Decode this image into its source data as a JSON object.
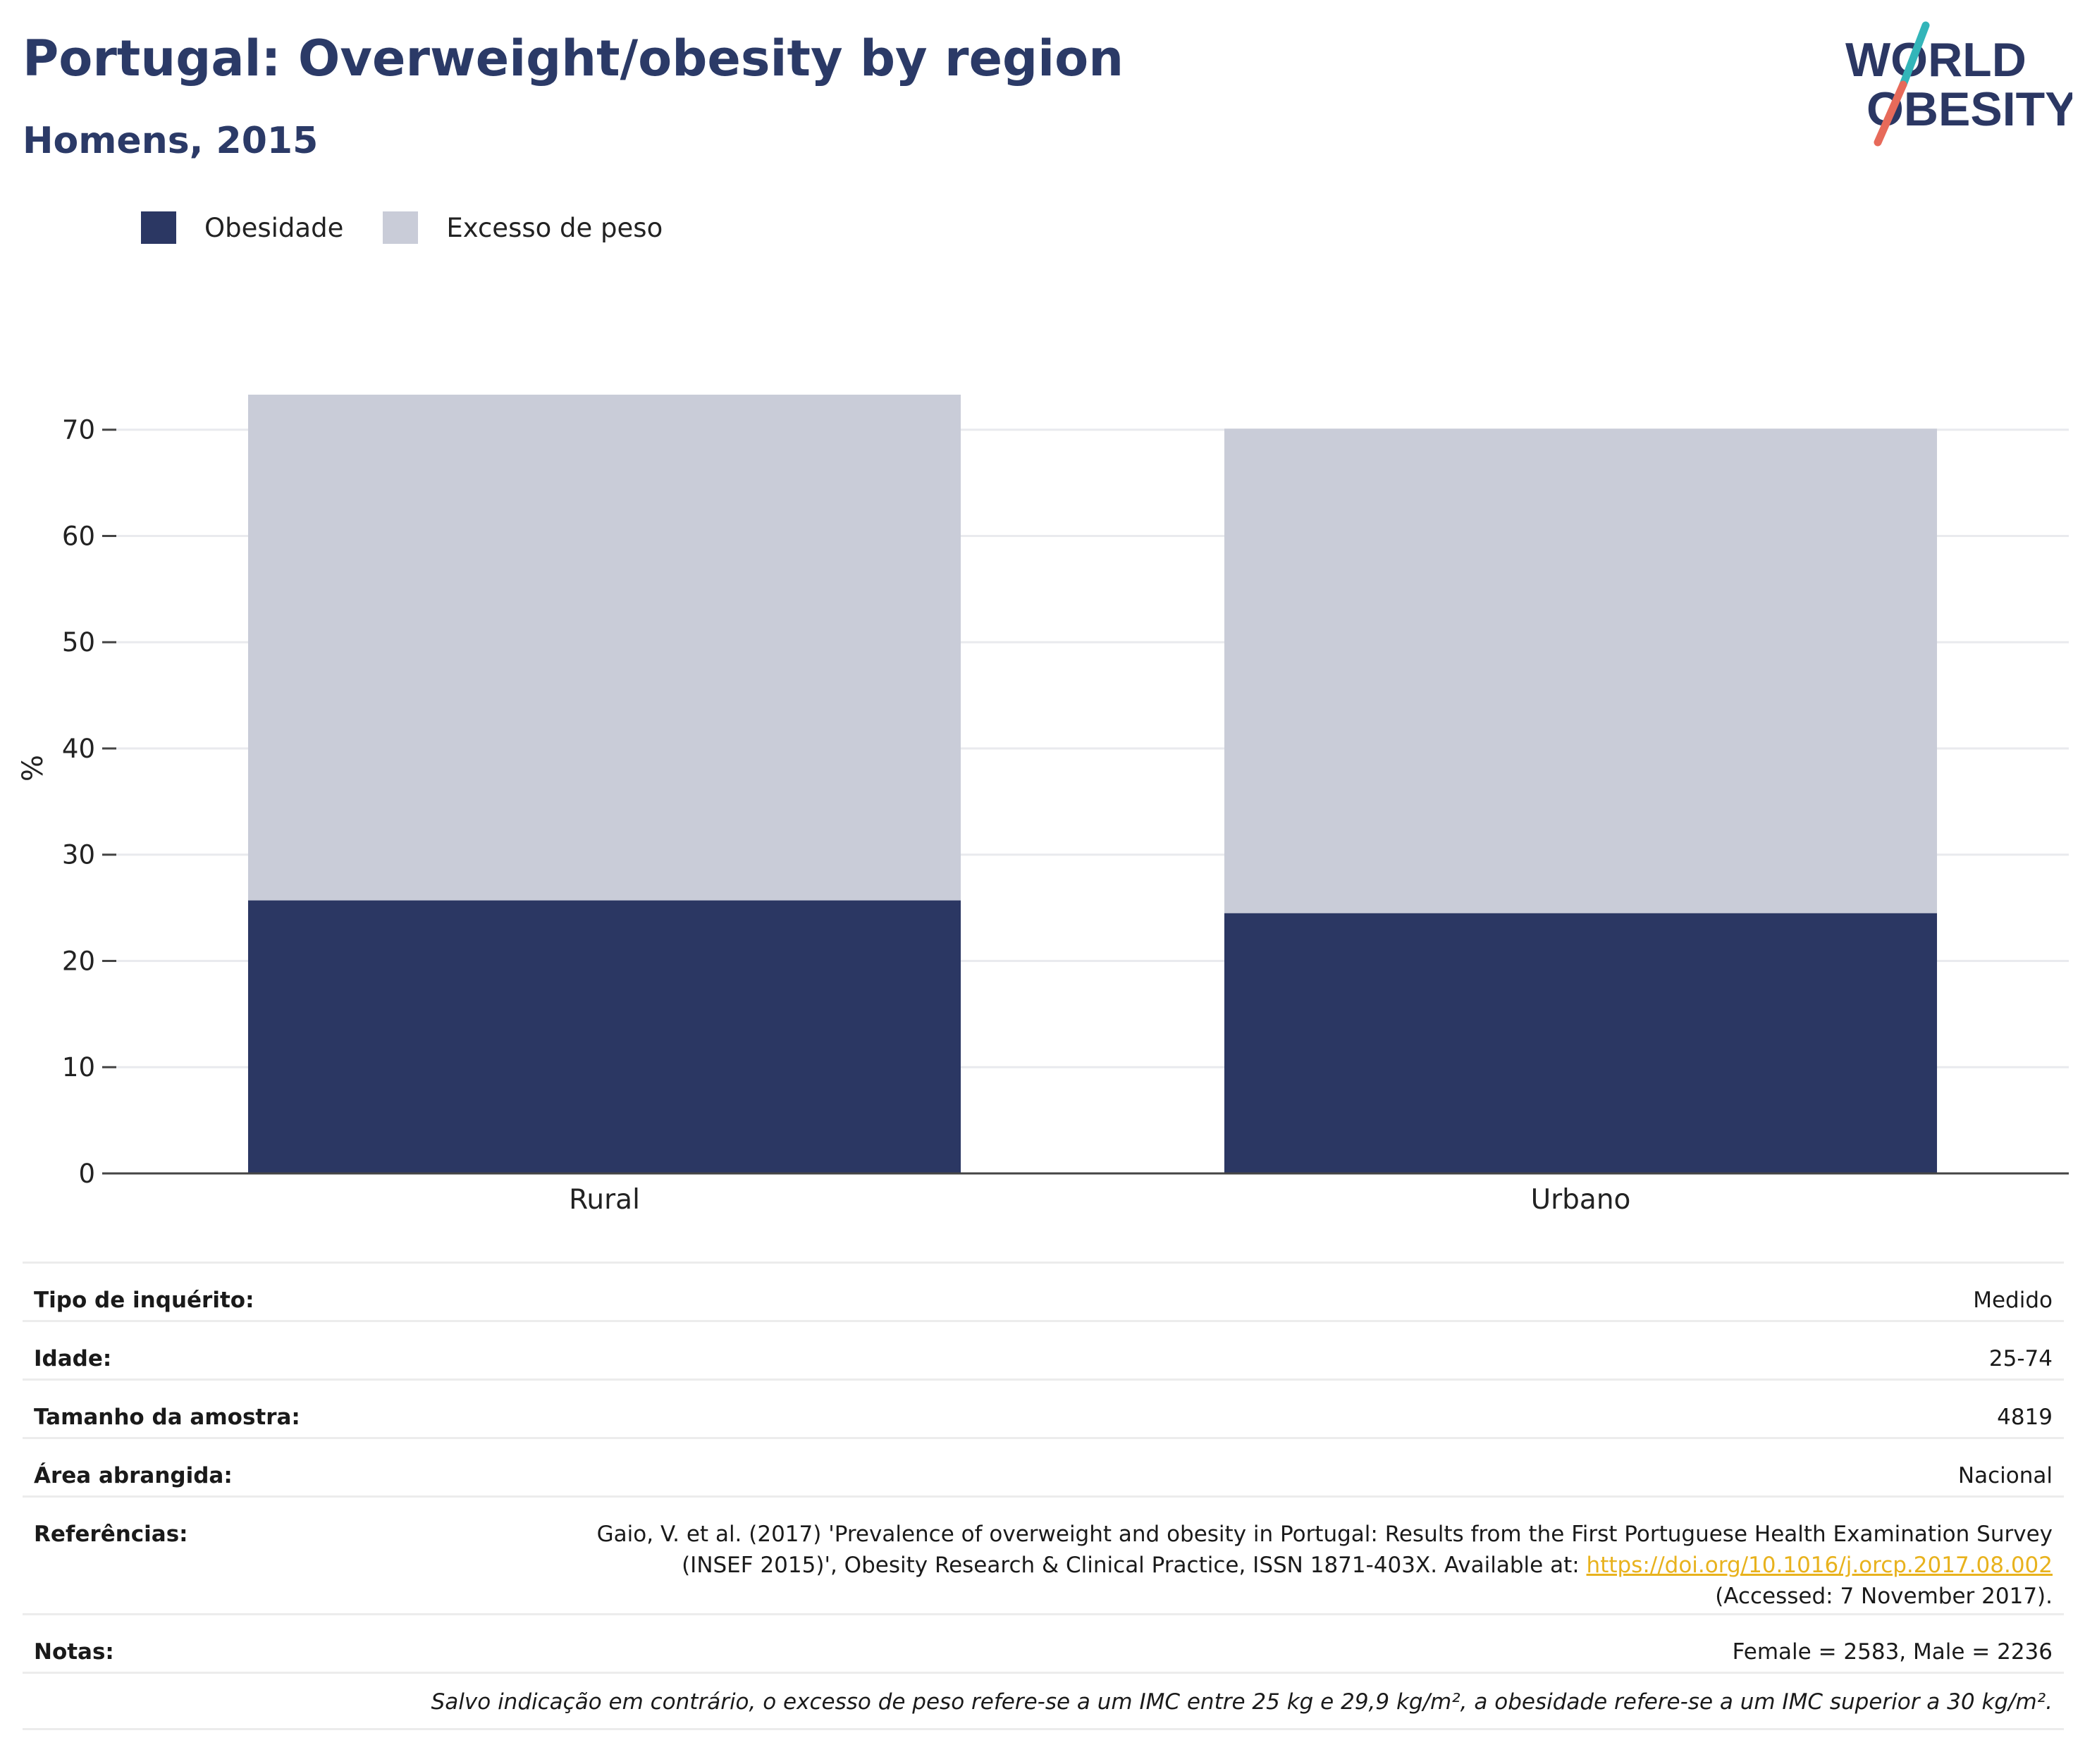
{
  "header": {
    "title": "Portugal: Overweight/obesity by region",
    "subtitle": "Homens, 2015"
  },
  "logo": {
    "line1": "WORLD",
    "line2": "OBESITY"
  },
  "legend": {
    "items": [
      {
        "label": "Obesidade",
        "color": "#2b3763"
      },
      {
        "label": "Excesso de peso",
        "color": "#c9ccd8"
      }
    ]
  },
  "chart_data": {
    "type": "bar",
    "stacked": true,
    "categories": [
      "Rural",
      "Urbano"
    ],
    "series": [
      {
        "name": "Obesidade",
        "values": [
          25.7,
          24.5
        ],
        "color": "#2b3763"
      },
      {
        "name": "Excesso de peso",
        "values": [
          47.6,
          45.6
        ],
        "color": "#c9ccd8"
      }
    ],
    "ylabel": "%",
    "ylim": [
      0,
      73.3
    ],
    "yticks": [
      0,
      10,
      20,
      30,
      40,
      50,
      60,
      70
    ],
    "grid": true,
    "legend_position": "top-left"
  },
  "info": {
    "rows": [
      {
        "label": "Tipo de inquérito:",
        "value": "Medido"
      },
      {
        "label": "Idade:",
        "value": "25-74"
      },
      {
        "label": "Tamanho da amostra:",
        "value": "4819"
      },
      {
        "label": "Área abrangida:",
        "value": "Nacional"
      }
    ],
    "references": {
      "label": "Referências:",
      "line1": "Gaio, V. et al. (2017) 'Prevalence of overweight and obesity in Portugal: Results from the First Portuguese Health Examination Survey",
      "line2": "(INSEF 2015)', Obesity Research & Clinical Practice, ISSN 1871-403X. Available at: ",
      "link": "https://doi.org/10.1016/j.orcp.2017.08.002",
      "line3": "(Accessed: 7 November 2017)."
    },
    "notes": {
      "label": "Notas:",
      "value": "Female = 2583, Male = 2236"
    },
    "footnote": "Salvo indicação em contrário, o excesso de peso refere-se a um IMC entre 25 kg e 29,9 kg/m², a obesidade refere-se a um IMC superior a 30 kg/m²."
  }
}
